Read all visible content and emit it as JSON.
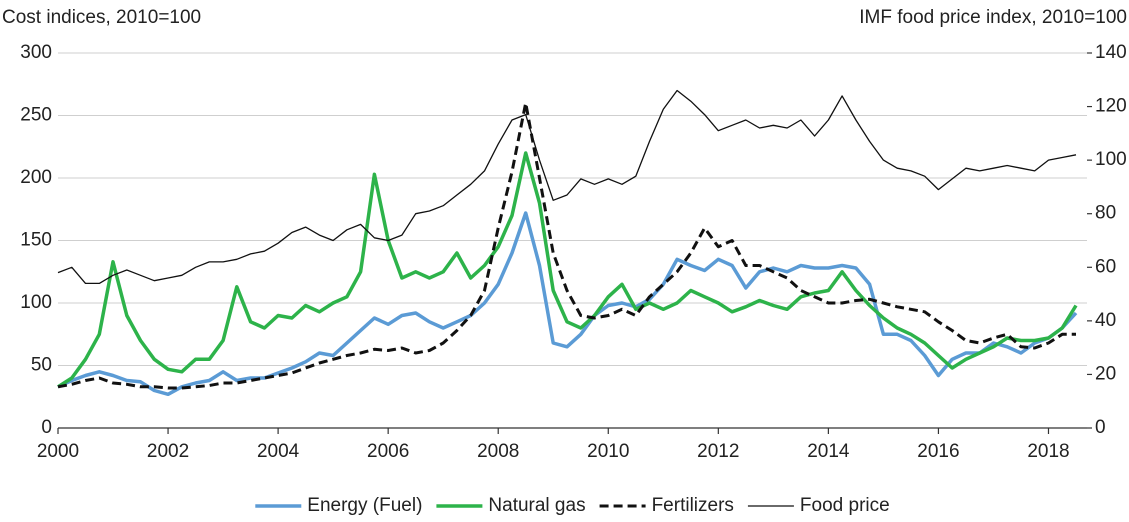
{
  "chart_data": {
    "type": "line",
    "y_label": "Cost indices, 2010=100",
    "y2_label": "IMF food price index, 2010=100",
    "x": [
      2000,
      2000.25,
      2000.5,
      2000.75,
      2001,
      2001.25,
      2001.5,
      2001.75,
      2002,
      2002.25,
      2002.5,
      2002.75,
      2003,
      2003.25,
      2003.5,
      2003.75,
      2004,
      2004.25,
      2004.5,
      2004.75,
      2005,
      2005.25,
      2005.5,
      2005.75,
      2006,
      2006.25,
      2006.5,
      2006.75,
      2007,
      2007.25,
      2007.5,
      2007.75,
      2008,
      2008.25,
      2008.5,
      2008.75,
      2009,
      2009.25,
      2009.5,
      2009.75,
      2010,
      2010.25,
      2010.5,
      2010.75,
      2011,
      2011.25,
      2011.5,
      2011.75,
      2012,
      2012.25,
      2012.5,
      2012.75,
      2013,
      2013.25,
      2013.5,
      2013.75,
      2014,
      2014.25,
      2014.5,
      2014.75,
      2015,
      2015.25,
      2015.5,
      2015.75,
      2016,
      2016.25,
      2016.5,
      2016.75,
      2017,
      2017.25,
      2017.5,
      2017.75,
      2018,
      2018.25,
      2018.5
    ],
    "series": [
      {
        "name": "Energy (Fuel)",
        "color": "#5b9bd5",
        "linestyle": "solid",
        "linewidth": 3.5,
        "axis": "y",
        "values": [
          33,
          38,
          42,
          45,
          42,
          38,
          37,
          30,
          27,
          33,
          36,
          38,
          45,
          38,
          40,
          40,
          44,
          48,
          53,
          60,
          58,
          68,
          78,
          88,
          83,
          90,
          92,
          85,
          80,
          85,
          90,
          100,
          115,
          140,
          172,
          130,
          68,
          65,
          75,
          90,
          98,
          100,
          97,
          103,
          115,
          135,
          130,
          126,
          135,
          130,
          112,
          125,
          128,
          125,
          130,
          128,
          128,
          130,
          128,
          115,
          75,
          75,
          70,
          58,
          42,
          55,
          60,
          60,
          68,
          65,
          60,
          68,
          72,
          80,
          92
        ]
      },
      {
        "name": "Natural gas",
        "color": "#2db34a",
        "linestyle": "solid",
        "linewidth": 3.5,
        "axis": "y",
        "values": [
          33,
          40,
          55,
          75,
          133,
          90,
          70,
          55,
          47,
          45,
          55,
          55,
          70,
          113,
          85,
          80,
          90,
          88,
          98,
          93,
          100,
          105,
          125,
          203,
          150,
          120,
          125,
          120,
          125,
          140,
          120,
          130,
          145,
          170,
          220,
          180,
          110,
          85,
          80,
          90,
          105,
          115,
          95,
          100,
          95,
          100,
          110,
          105,
          100,
          93,
          97,
          102,
          98,
          95,
          105,
          108,
          110,
          125,
          110,
          98,
          88,
          80,
          75,
          68,
          58,
          48,
          55,
          60,
          65,
          72,
          70,
          70,
          72,
          80,
          98
        ]
      },
      {
        "name": "Fertilizers",
        "color": "#111111",
        "linestyle": "dashed",
        "linewidth": 3,
        "axis": "y",
        "values": [
          33,
          35,
          38,
          40,
          36,
          35,
          33,
          33,
          32,
          32,
          33,
          34,
          36,
          36,
          38,
          40,
          42,
          44,
          48,
          52,
          55,
          58,
          60,
          63,
          62,
          64,
          60,
          62,
          68,
          78,
          90,
          110,
          160,
          205,
          260,
          200,
          140,
          110,
          90,
          88,
          90,
          95,
          90,
          105,
          115,
          125,
          140,
          160,
          145,
          150,
          130,
          130,
          125,
          120,
          110,
          105,
          100,
          100,
          102,
          103,
          100,
          97,
          95,
          93,
          85,
          78,
          70,
          68,
          72,
          75,
          65,
          64,
          68,
          75,
          75
        ]
      },
      {
        "name": "Food price",
        "color": "#111111",
        "linestyle": "solid",
        "linewidth": 1.3,
        "axis": "y2",
        "values": [
          58,
          60,
          54,
          54,
          57,
          59,
          57,
          55,
          56,
          57,
          60,
          62,
          62,
          63,
          65,
          66,
          69,
          73,
          75,
          72,
          70,
          74,
          76,
          71,
          70,
          72,
          80,
          81,
          83,
          87,
          91,
          96,
          106,
          115,
          117,
          100,
          85,
          87,
          93,
          91,
          93,
          91,
          94,
          107,
          119,
          126,
          122,
          117,
          111,
          113,
          115,
          112,
          113,
          112,
          115,
          109,
          115,
          124,
          115,
          107,
          100,
          97,
          96,
          94,
          89,
          93,
          97,
          96,
          97,
          98,
          97,
          96,
          100,
          101,
          102
        ]
      }
    ],
    "xlim": [
      2000,
      2018.7
    ],
    "xticks": [
      2000,
      2002,
      2004,
      2006,
      2008,
      2010,
      2012,
      2014,
      2016,
      2018
    ],
    "ylim": [
      0,
      300
    ],
    "yticks": [
      0,
      50,
      100,
      150,
      200,
      250,
      300
    ],
    "y2lim": [
      0,
      140
    ],
    "y2ticks": [
      0,
      20,
      40,
      60,
      80,
      100,
      120,
      140
    ],
    "grid": true,
    "legend": "bottom"
  }
}
